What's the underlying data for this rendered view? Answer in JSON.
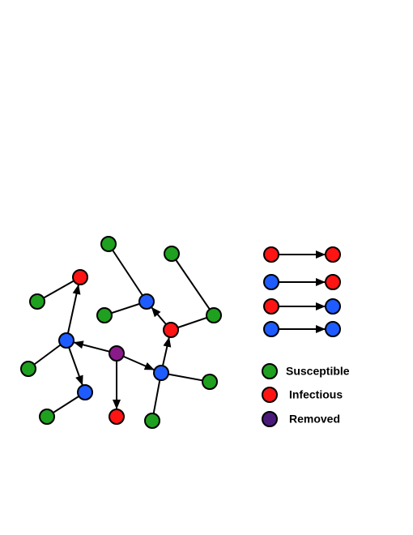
{
  "legend": {
    "items": [
      {
        "label": "Susceptible"
      },
      {
        "label": "Infectious"
      },
      {
        "label": "Removed"
      }
    ]
  }
}
